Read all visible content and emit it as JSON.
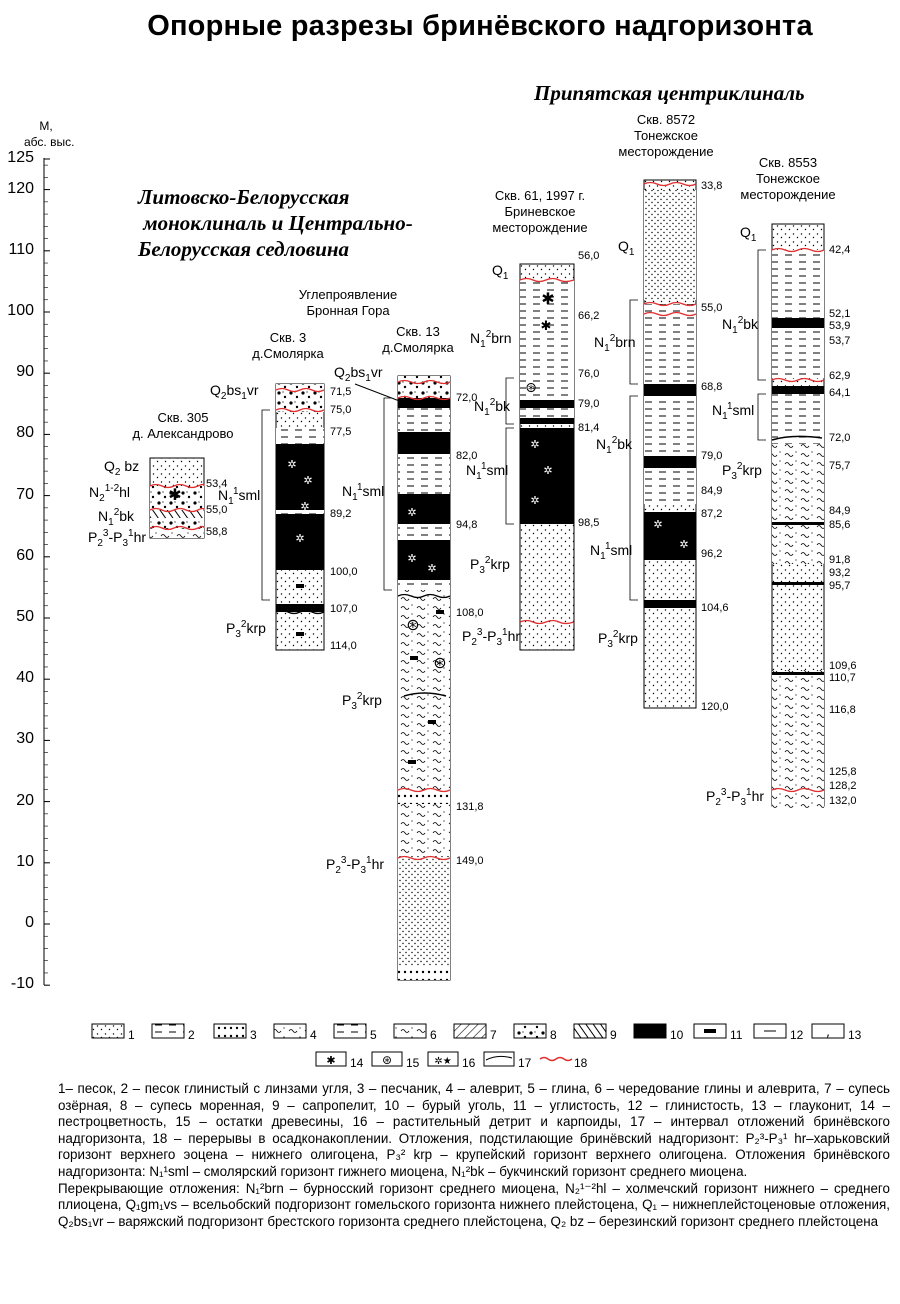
{
  "title": "Опорные разрезы бринёвского надгоризонта",
  "axis": {
    "unit_line1": "М,",
    "unit_line2": "абс. выс.",
    "ticks": [
      "125",
      "120",
      "110",
      "100",
      "90",
      "80",
      "70",
      "60",
      "50",
      "40",
      "30",
      "20",
      "10",
      "0",
      "-10"
    ]
  },
  "regions": {
    "left": "Литовско-Белорусская\n моноклиналь и Центрально-\nБелорусская седловина",
    "right": "Припятская центриклиналь"
  },
  "wells": {
    "w305": {
      "name": "Скв. 305",
      "place": "д. Александрово",
      "depths": [
        "53,4",
        "55,0",
        "58,8"
      ],
      "units": {
        "q2bz": "Q",
        "n12hl": "N",
        "n1bk": "N",
        "p23hr": "P"
      }
    },
    "w3": {
      "note1": "Углепроявление",
      "note2": "Бронная Гора",
      "name": "Скв. 3",
      "place": "д.Смолярка",
      "depths": [
        "71,5",
        "75,0",
        "77,5",
        "89,2",
        "100,0",
        "107,0",
        "114,0"
      ]
    },
    "w13": {
      "name": "Скв. 13",
      "place": "д.Смолярка",
      "depths": [
        "72,0",
        "82,0",
        "94,8",
        "108,0",
        "131,8",
        "149,0"
      ]
    },
    "w61": {
      "name": "Скв. 61, 1997 г.",
      "place1": "Бриневское",
      "place2": "месторождение",
      "depths": [
        "56,0",
        "66,2",
        "76,0",
        "79,0",
        "81,4",
        "98,5"
      ]
    },
    "w8572": {
      "name": "Скв. 8572",
      "place1": "Тонежское",
      "place2": "месторождение",
      "depths": [
        "33,8",
        "55,0",
        "68,8",
        "79,0",
        "84,9",
        "87,2",
        "96,2",
        "104,6",
        "120,0"
      ]
    },
    "w8553": {
      "name": "Скв. 8553",
      "place1": "Тонежское",
      "place2": "месторождение",
      "depths": [
        "42,4",
        "52,1",
        "53,9",
        "53,7",
        "62,9",
        "64,1",
        "72,0",
        "75,7",
        "84,9",
        "85,6",
        "91,8",
        "93,2",
        "95,7",
        "109,6",
        "110,7",
        "116,8",
        "125,8",
        "128,2",
        "132,0"
      ]
    }
  },
  "legend": {
    "numbers": [
      "1",
      "2",
      "3",
      "4",
      "5",
      "6",
      "7",
      "8",
      "9",
      "10",
      "11",
      "12",
      "13",
      "14",
      "15",
      "16",
      "17",
      "18"
    ]
  },
  "caption": {
    "p1": "1– песок, 2 – песок глинистый с линзами угля, 3 – песчаник, 4 – алеврит, 5 – глина, 6 – чередование глины и алеврита, 7 – супесь озёрная, 8 – супесь моренная, 9 – сапропелит, 10 – бурый уголь, 11 – углистость, 12 – глинистость, 13 – глауконит, 14 – пестроцветность, 15 – остатки древесины, 16 – растительный детрит и карпоиды, 17 – интервал отложений бринёвского надгоризонта, 18 – перерывы в осадконакоплении. Отложения, подстилающие бринёвский надгоризонт:",
    "hr": "Р₂³-Р₃¹ hr",
    "p1b": "–харьковский горизонт верхнего эоцена – нижнего олигоцена,",
    "krp": "Р₃² krp",
    "p1c": "– крупейский горизонт верхнего олигоцена. Отложения бринёвского надгоризонта:",
    "sml": "N₁¹sml",
    "p1d": "– смолярский горизонт гижнего миоцена,",
    "bk": "N₁²bk",
    "p1e": "– букчинский горизонт среднего миоцена.",
    "p2a": "Перекрывающие отложения:",
    "brn": "N₁²brn",
    "p2b": "– бурносский горизонт среднего миоцена,",
    "hl": "N₂¹⁻²hl",
    "p2c": "– холмечский горизонт нижнего – среднего плиоцена,",
    "vs": "Q₁gm₁vs",
    "p2d": "– всельобский подгоризонт гомельского горизонта нижнего плейстоцена,",
    "q1": "Q₁",
    "p2e": "– нижнеплейстоценовые отложения,",
    "vr": "Q₂bs₁vr",
    "p2f": "– варяжский подгоризонт брестского горизонта среднего плейстоцена,",
    "bz": "Q₂ bz",
    "p2g": "– березинский горизонт среднего плейстоцена"
  },
  "colors": {
    "hiatus": "#e03030",
    "coal": "#000000",
    "sand": "#ffffff"
  }
}
